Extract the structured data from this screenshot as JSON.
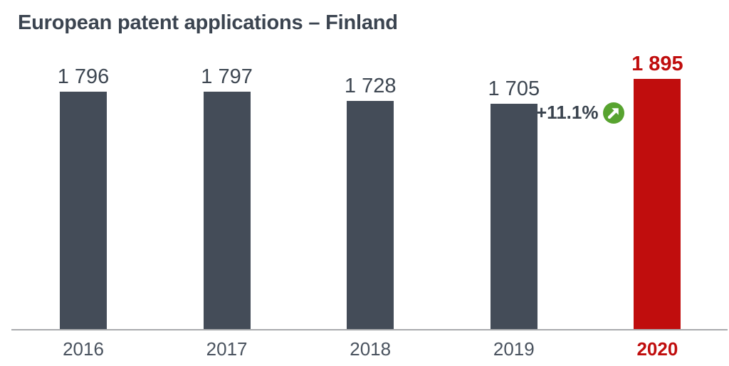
{
  "chart_data": {
    "type": "bar",
    "title": "European patent applications – Finland",
    "categories": [
      "2016",
      "2017",
      "2018",
      "2019",
      "2020"
    ],
    "values": [
      1796,
      1797,
      1728,
      1705,
      1895
    ],
    "value_labels": [
      "1 796",
      "1 797",
      "1 728",
      "1 705",
      "1 895"
    ],
    "highlight_index": 4,
    "xlabel": "",
    "ylabel": "",
    "ylim": [
      0,
      1950
    ],
    "grid": false,
    "legend": false,
    "annotation": {
      "text": "+11.1%",
      "icon": "trend-up-circle-icon",
      "attached_to": "2019"
    },
    "colors": {
      "bar": "#444c58",
      "highlight": "#c00d0d",
      "annotation_green": "#57a32f",
      "axis_line": "#a9aaad",
      "value_label": "#3d4651",
      "x_label": "#49525e",
      "title": "#3b4450"
    }
  }
}
